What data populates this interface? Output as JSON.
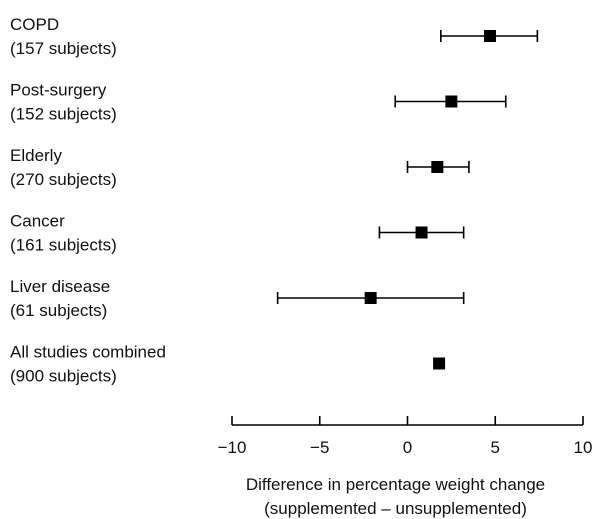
{
  "chart_data": {
    "type": "scatter",
    "variant": "forest-plot",
    "title": "",
    "xlabel": "Difference in percentage weight change",
    "xlabel_line2": "(supplemented – unsupplemented)",
    "ylabel": "",
    "xlim": [
      -10,
      10
    ],
    "xticks": [
      -10,
      -5,
      0,
      5,
      10
    ],
    "xtick_labels": [
      "−10",
      "−5",
      "0",
      "5",
      "10"
    ],
    "grid": false,
    "legend": "none",
    "marker_color": "#000000",
    "groups": [
      {
        "name": "COPD",
        "subjects": "(157 subjects)",
        "estimate": 4.7,
        "ci_low": 1.9,
        "ci_high": 7.4
      },
      {
        "name": "Post-surgery",
        "subjects": "(152 subjects)",
        "estimate": 2.5,
        "ci_low": -0.7,
        "ci_high": 5.6
      },
      {
        "name": "Elderly",
        "subjects": "(270 subjects)",
        "estimate": 1.7,
        "ci_low": 0.0,
        "ci_high": 3.5
      },
      {
        "name": "Cancer",
        "subjects": "(161 subjects)",
        "estimate": 0.8,
        "ci_low": -1.6,
        "ci_high": 3.2
      },
      {
        "name": "Liver disease",
        "subjects": "(61 subjects)",
        "estimate": -2.1,
        "ci_low": -7.4,
        "ci_high": 3.2
      },
      {
        "name": "All studies combined",
        "subjects": "(900 subjects)",
        "estimate": 1.8,
        "ci_low": null,
        "ci_high": null
      }
    ]
  }
}
